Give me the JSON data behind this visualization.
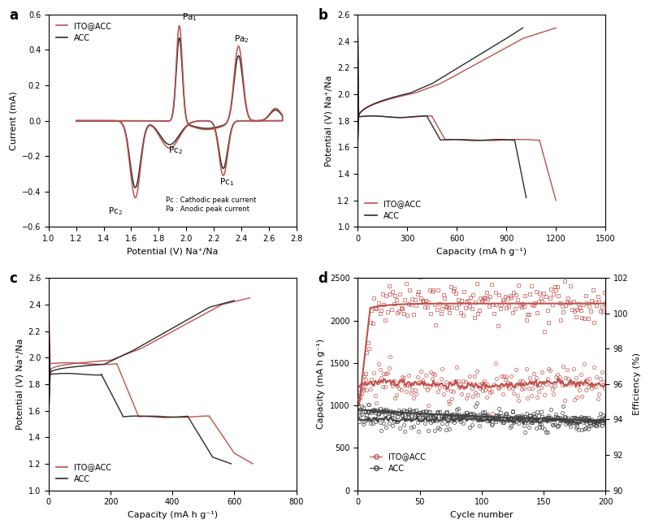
{
  "panel_a": {
    "xlabel": "Potential (V) Na⁺/Na",
    "ylabel": "Current (mA)",
    "xlim": [
      1.0,
      2.8
    ],
    "ylim": [
      -0.6,
      0.6
    ],
    "xticks": [
      1.0,
      1.2,
      1.4,
      1.6,
      1.8,
      2.0,
      2.2,
      2.4,
      2.6,
      2.8
    ],
    "yticks": [
      -0.6,
      -0.4,
      -0.2,
      0.0,
      0.2,
      0.4,
      0.6
    ],
    "color_ito": "#c0504d",
    "color_acc": "#2b2b2b",
    "legend_ito": "ITO@ACC",
    "legend_acc": "ACC"
  },
  "panel_b": {
    "xlabel": "Capacity (mA h g⁻¹)",
    "ylabel": "Potential (V) Na⁺/Na",
    "xlim": [
      0,
      1500
    ],
    "ylim": [
      1.0,
      2.6
    ],
    "xticks": [
      0,
      300,
      600,
      900,
      1200,
      1500
    ],
    "yticks": [
      1.0,
      1.2,
      1.4,
      1.6,
      1.8,
      2.0,
      2.2,
      2.4,
      2.6
    ],
    "color_ito": "#c0504d",
    "color_acc": "#2b2b2b",
    "legend_ito": "ITO@ACC",
    "legend_acc": "ACC"
  },
  "panel_c": {
    "xlabel": "Capacity (mA h g⁻¹)",
    "ylabel": "Potential (V) Na⁺/Na",
    "xlim": [
      0,
      800
    ],
    "ylim": [
      1.0,
      2.6
    ],
    "xticks": [
      0,
      200,
      400,
      600,
      800
    ],
    "yticks": [
      1.0,
      1.2,
      1.4,
      1.6,
      1.8,
      2.0,
      2.2,
      2.4,
      2.6
    ],
    "color_ito": "#c0504d",
    "color_acc": "#2b2b2b",
    "legend_ito": "ITO@ACC",
    "legend_acc": "ACC"
  },
  "panel_d": {
    "xlabel": "Cycle number",
    "ylabel_left": "Capacity (mA h g⁻¹)",
    "ylabel_right": "Efficiency (%)",
    "xlim": [
      0,
      200
    ],
    "ylim_left": [
      0,
      2500
    ],
    "ylim_right": [
      90,
      102
    ],
    "xticks": [
      0,
      50,
      100,
      150,
      200
    ],
    "yticks_left": [
      0,
      500,
      1000,
      1500,
      2000,
      2500
    ],
    "yticks_right": [
      90,
      92,
      94,
      96,
      98,
      100,
      102
    ],
    "color_ito": "#c0504d",
    "color_acc": "#404040",
    "legend_ito": "ITO@ACC",
    "legend_acc": "ACC"
  }
}
